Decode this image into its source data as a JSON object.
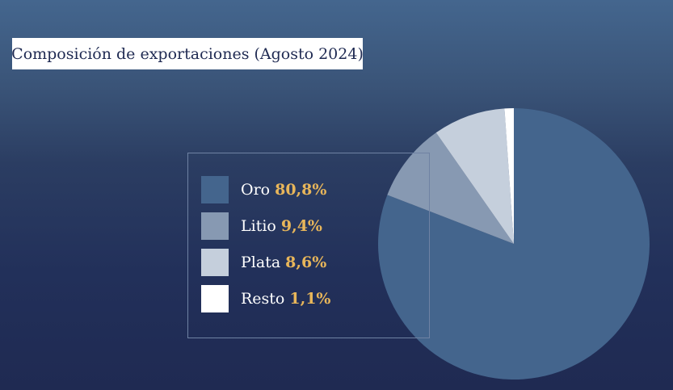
{
  "chart_data": {
    "type": "pie",
    "title": "Composición de exportaciones (Agosto 2024)",
    "slices": [
      {
        "label": "Oro",
        "value": 80.8,
        "value_text": "80,8%",
        "color": "#44658d"
      },
      {
        "label": "Litio",
        "value": 9.4,
        "value_text": "9,4%",
        "color": "#8799b2"
      },
      {
        "label": "Plata",
        "value": 8.6,
        "value_text": "8,6%",
        "color": "#c5cfdc"
      },
      {
        "label": "Resto",
        "value": 1.1,
        "value_text": "1,1%",
        "color": "#ffffff"
      }
    ],
    "legend_position": "left"
  }
}
